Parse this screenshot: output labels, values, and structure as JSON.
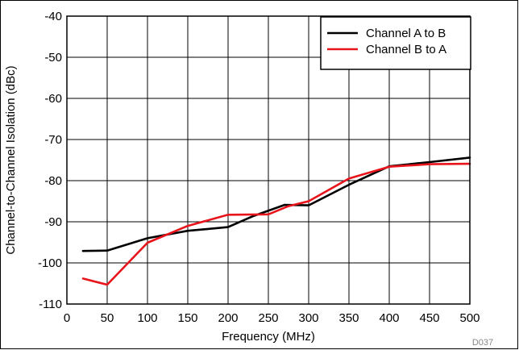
{
  "chart_data": {
    "type": "line",
    "xlabel": "Frequency  (MHz)",
    "ylabel": "Channel-to-Channel Isolation (dBc)",
    "xlim": [
      0,
      500
    ],
    "ylim": [
      -110,
      -40
    ],
    "xticks": [
      "0",
      "50",
      "100",
      "150",
      "200",
      "250",
      "300",
      "350",
      "400",
      "450",
      "500"
    ],
    "yticks": [
      "-40",
      "-50",
      "-60",
      "-70",
      "-80",
      "-90",
      "-100",
      "-110"
    ],
    "grid": true,
    "legend_position": "top-right",
    "figure_id": "D037",
    "series": [
      {
        "name": "Channel A to B",
        "color": "#000000",
        "x": [
          20,
          50,
          100,
          150,
          200,
          230,
          270,
          300,
          350,
          400,
          450,
          500
        ],
        "y": [
          -97.1,
          -97.0,
          -94.0,
          -92.2,
          -91.3,
          -88.7,
          -85.9,
          -86.0,
          -81.0,
          -76.5,
          -75.5,
          -74.4
        ]
      },
      {
        "name": "Channel B to A",
        "color": "#e8141c",
        "x": [
          20,
          50,
          100,
          150,
          200,
          250,
          275,
          300,
          350,
          400,
          450,
          500
        ],
        "y": [
          -103.8,
          -105.3,
          -95.1,
          -91.0,
          -88.3,
          -88.2,
          -86.2,
          -85.0,
          -79.5,
          -76.6,
          -76.0,
          -75.9
        ]
      }
    ]
  }
}
